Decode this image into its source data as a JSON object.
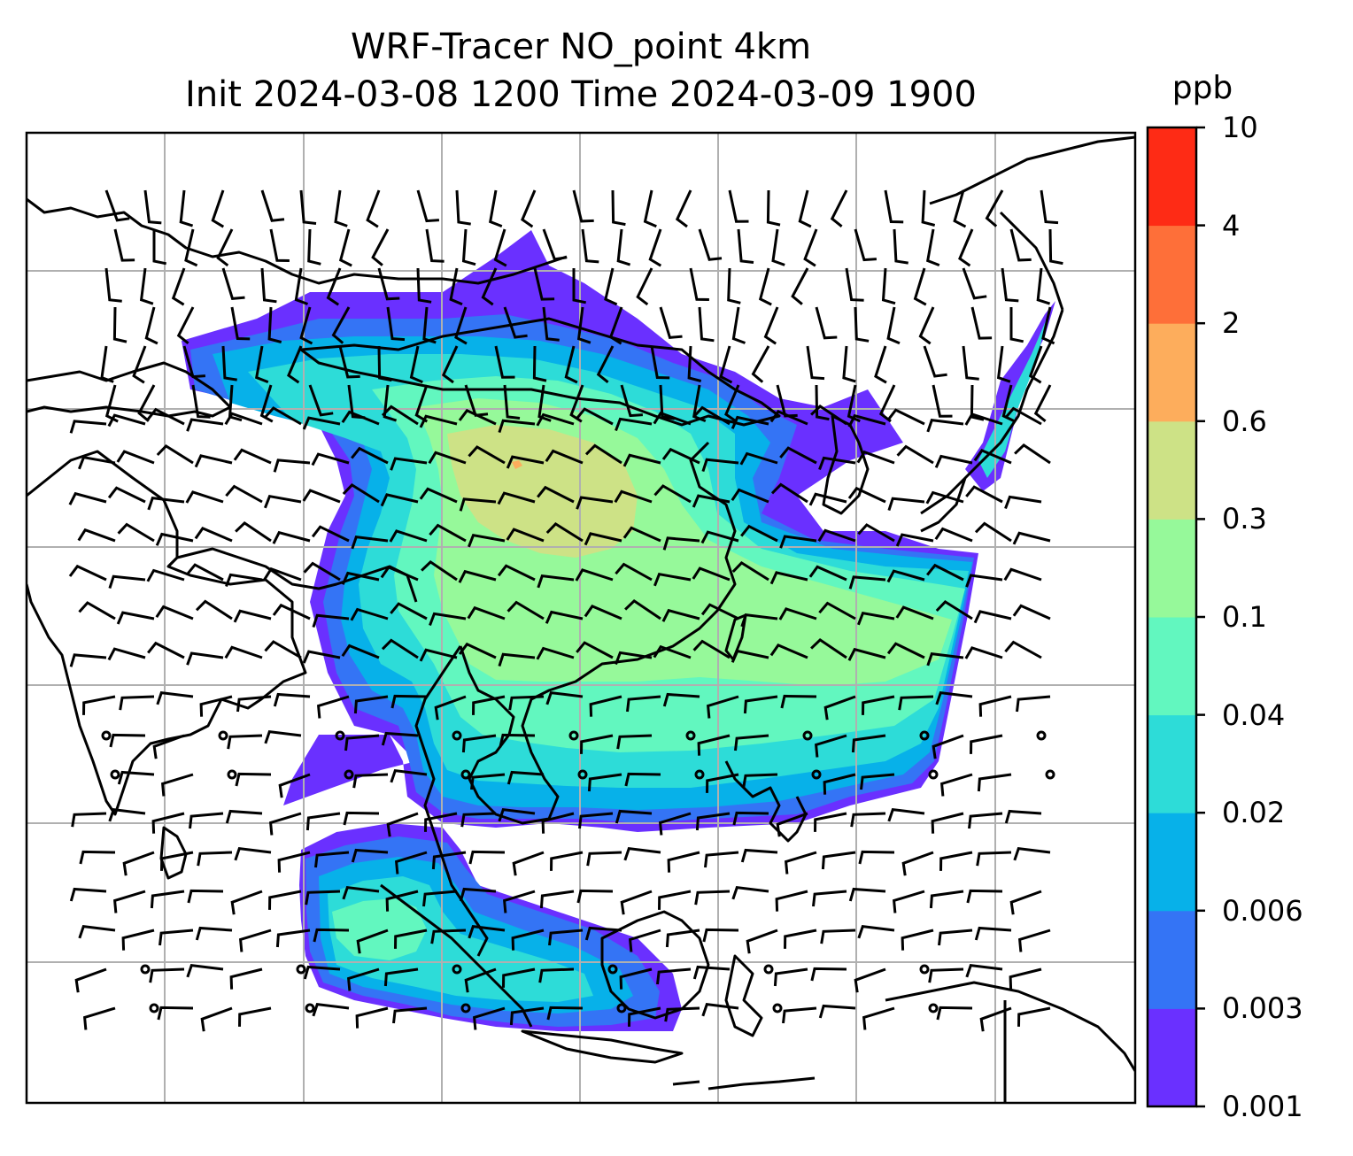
{
  "title": {
    "line1": "WRF-Tracer NO_point 4km",
    "line2": "Init 2024-03-08 1200 Time 2024-03-09 1900"
  },
  "colorbar": {
    "unit": "ppb",
    "levels": [
      "0.001",
      "0.003",
      "0.006",
      "0.02",
      "0.04",
      "0.1",
      "0.3",
      "0.6",
      "2",
      "4",
      "10"
    ],
    "colors": [
      "#6a30ff",
      "#3474f5",
      "#07b1e9",
      "#2ddcd8",
      "#62f7bf",
      "#96f99a",
      "#cde286",
      "#fdad5c",
      "#fe6f39",
      "#fe2b15"
    ]
  },
  "map": {
    "variable": "NO_point tracer concentration",
    "gridlines": true,
    "coastlines": true,
    "wind_barbs": true,
    "colors": {
      "gridline": "#b0b0b0",
      "coastline": "#000000",
      "frame": "#000000"
    }
  }
}
